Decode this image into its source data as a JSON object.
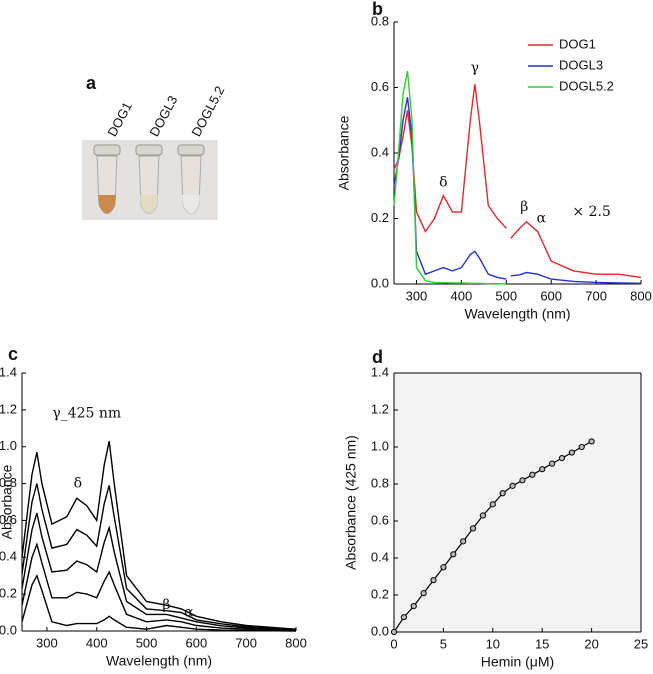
{
  "photo": {
    "label": "a",
    "tubes": [
      "DOG1",
      "DOGL3",
      "DOGL5.2"
    ]
  },
  "chart_data": [
    {
      "type": "line",
      "panel_label": "b",
      "x_label": "Wavelength (nm)",
      "y_label": "Absorbance",
      "xlim": [
        250,
        800
      ],
      "xticks": [
        300,
        400,
        500,
        600,
        700,
        800
      ],
      "ylim": [
        0,
        0.8
      ],
      "yticks": [
        {
          "value": 0,
          "label": "0.0"
        },
        0.2,
        0.4,
        0.6,
        0.8
      ],
      "legend": "upper right",
      "annotations": [
        "δ",
        "γ",
        "β",
        "α",
        "× 2.5"
      ],
      "x": [
        250,
        260,
        270,
        280,
        290,
        300,
        320,
        340,
        360,
        380,
        400,
        420,
        430,
        440,
        460,
        480,
        500,
        505,
        510,
        530,
        545,
        570,
        600,
        650,
        700,
        750,
        800
      ],
      "series": [
        {
          "name": "DOG1",
          "color": "#e8262a",
          "values": [
            0.35,
            0.38,
            0.45,
            0.53,
            0.42,
            0.22,
            0.16,
            0.2,
            0.27,
            0.22,
            0.22,
            0.5,
            0.61,
            0.5,
            0.24,
            0.2,
            0.17,
            null,
            0.14,
            0.17,
            0.19,
            0.16,
            0.07,
            0.04,
            0.03,
            0.03,
            0.02
          ]
        },
        {
          "name": "DOGL3",
          "color": "#2431d6",
          "values": [
            0.3,
            0.38,
            0.5,
            0.57,
            0.45,
            0.1,
            0.03,
            0.04,
            0.05,
            0.04,
            0.05,
            0.09,
            0.1,
            0.08,
            0.03,
            0.02,
            0.015,
            null,
            0.025,
            0.028,
            0.035,
            0.03,
            0.015,
            0.008,
            0.005,
            0.003,
            0.002
          ]
        },
        {
          "name": "DOGL5.2",
          "color": "#2fd12f",
          "values": [
            0.24,
            0.4,
            0.58,
            0.65,
            0.5,
            0.05,
            0.01,
            0.005,
            0.004,
            0.003,
            0.003,
            0.002,
            0.002,
            0.002,
            0.001,
            0.001,
            0,
            null,
            null,
            null,
            null,
            null,
            null,
            null,
            null,
            null,
            null
          ]
        }
      ]
    },
    {
      "type": "line",
      "panel_label": "c",
      "x_label": "Wavelength (nm)",
      "y_label": "Absorbance",
      "xlim": [
        250,
        800
      ],
      "xticks": [
        300,
        400,
        500,
        600,
        700,
        800
      ],
      "ylim": [
        0,
        1.4
      ],
      "yticks": [
        {
          "value": 0,
          "label": "0.0"
        },
        0.2,
        0.4,
        0.6,
        0.8,
        {
          "value": 1,
          "label": "1.0"
        },
        1.2,
        1.4
      ],
      "annotations": [
        "γ_425 nm",
        "δ",
        "β",
        "α"
      ],
      "x": [
        250,
        270,
        280,
        290,
        310,
        340,
        360,
        380,
        400,
        415,
        425,
        435,
        460,
        500,
        540,
        570,
        600,
        650,
        700,
        800
      ],
      "series": [
        {
          "color": "#000000",
          "values": [
            0.05,
            0.25,
            0.3,
            0.22,
            0.05,
            0.03,
            0.04,
            0.04,
            0.04,
            0.06,
            0.08,
            0.06,
            0.02,
            0.01,
            0.03,
            0.02,
            0.01,
            0.005,
            0.003,
            0
          ]
        },
        {
          "color": "#000000",
          "values": [
            0.14,
            0.4,
            0.47,
            0.37,
            0.18,
            0.18,
            0.21,
            0.2,
            0.18,
            0.27,
            0.32,
            0.25,
            0.09,
            0.05,
            0.06,
            0.05,
            0.03,
            0.016,
            0.01,
            0.003
          ]
        },
        {
          "color": "#000000",
          "values": [
            0.23,
            0.55,
            0.64,
            0.51,
            0.32,
            0.33,
            0.38,
            0.36,
            0.32,
            0.48,
            0.56,
            0.43,
            0.16,
            0.09,
            0.09,
            0.07,
            0.05,
            0.028,
            0.017,
            0.005
          ]
        },
        {
          "color": "#000000",
          "values": [
            0.31,
            0.7,
            0.8,
            0.66,
            0.45,
            0.47,
            0.55,
            0.52,
            0.46,
            0.69,
            0.79,
            0.62,
            0.23,
            0.12,
            0.11,
            0.1,
            0.06,
            0.039,
            0.023,
            0.008
          ]
        },
        {
          "color": "#000000",
          "values": [
            0.4,
            0.85,
            0.97,
            0.8,
            0.58,
            0.62,
            0.72,
            0.68,
            0.6,
            0.9,
            1.03,
            0.8,
            0.3,
            0.16,
            0.14,
            0.12,
            0.08,
            0.05,
            0.03,
            0.01
          ]
        }
      ]
    },
    {
      "type": "line",
      "markers": true,
      "panel_label": "d",
      "x_label": "Hemin (μM)",
      "y_label": "Absorbance (425 nm)",
      "xlim": [
        0,
        25
      ],
      "xticks": [
        0,
        5,
        10,
        15,
        20,
        25
      ],
      "ylim": [
        0,
        1.4
      ],
      "yticks": [
        {
          "value": 0,
          "label": "0.0"
        },
        0.2,
        0.4,
        0.6,
        0.8,
        {
          "value": 1,
          "label": "1.0"
        },
        1.2,
        1.4
      ],
      "x": [
        0,
        1,
        2,
        3,
        4,
        5,
        6,
        7,
        8,
        9,
        10,
        11,
        12,
        13,
        14,
        15,
        16,
        17,
        18,
        19,
        20
      ],
      "series": [
        {
          "color": "#000000",
          "values": [
            0,
            0.08,
            0.14,
            0.21,
            0.28,
            0.35,
            0.42,
            0.49,
            0.56,
            0.63,
            0.69,
            0.75,
            0.79,
            0.82,
            0.85,
            0.88,
            0.91,
            0.94,
            0.97,
            1.0,
            1.03
          ]
        }
      ]
    }
  ]
}
